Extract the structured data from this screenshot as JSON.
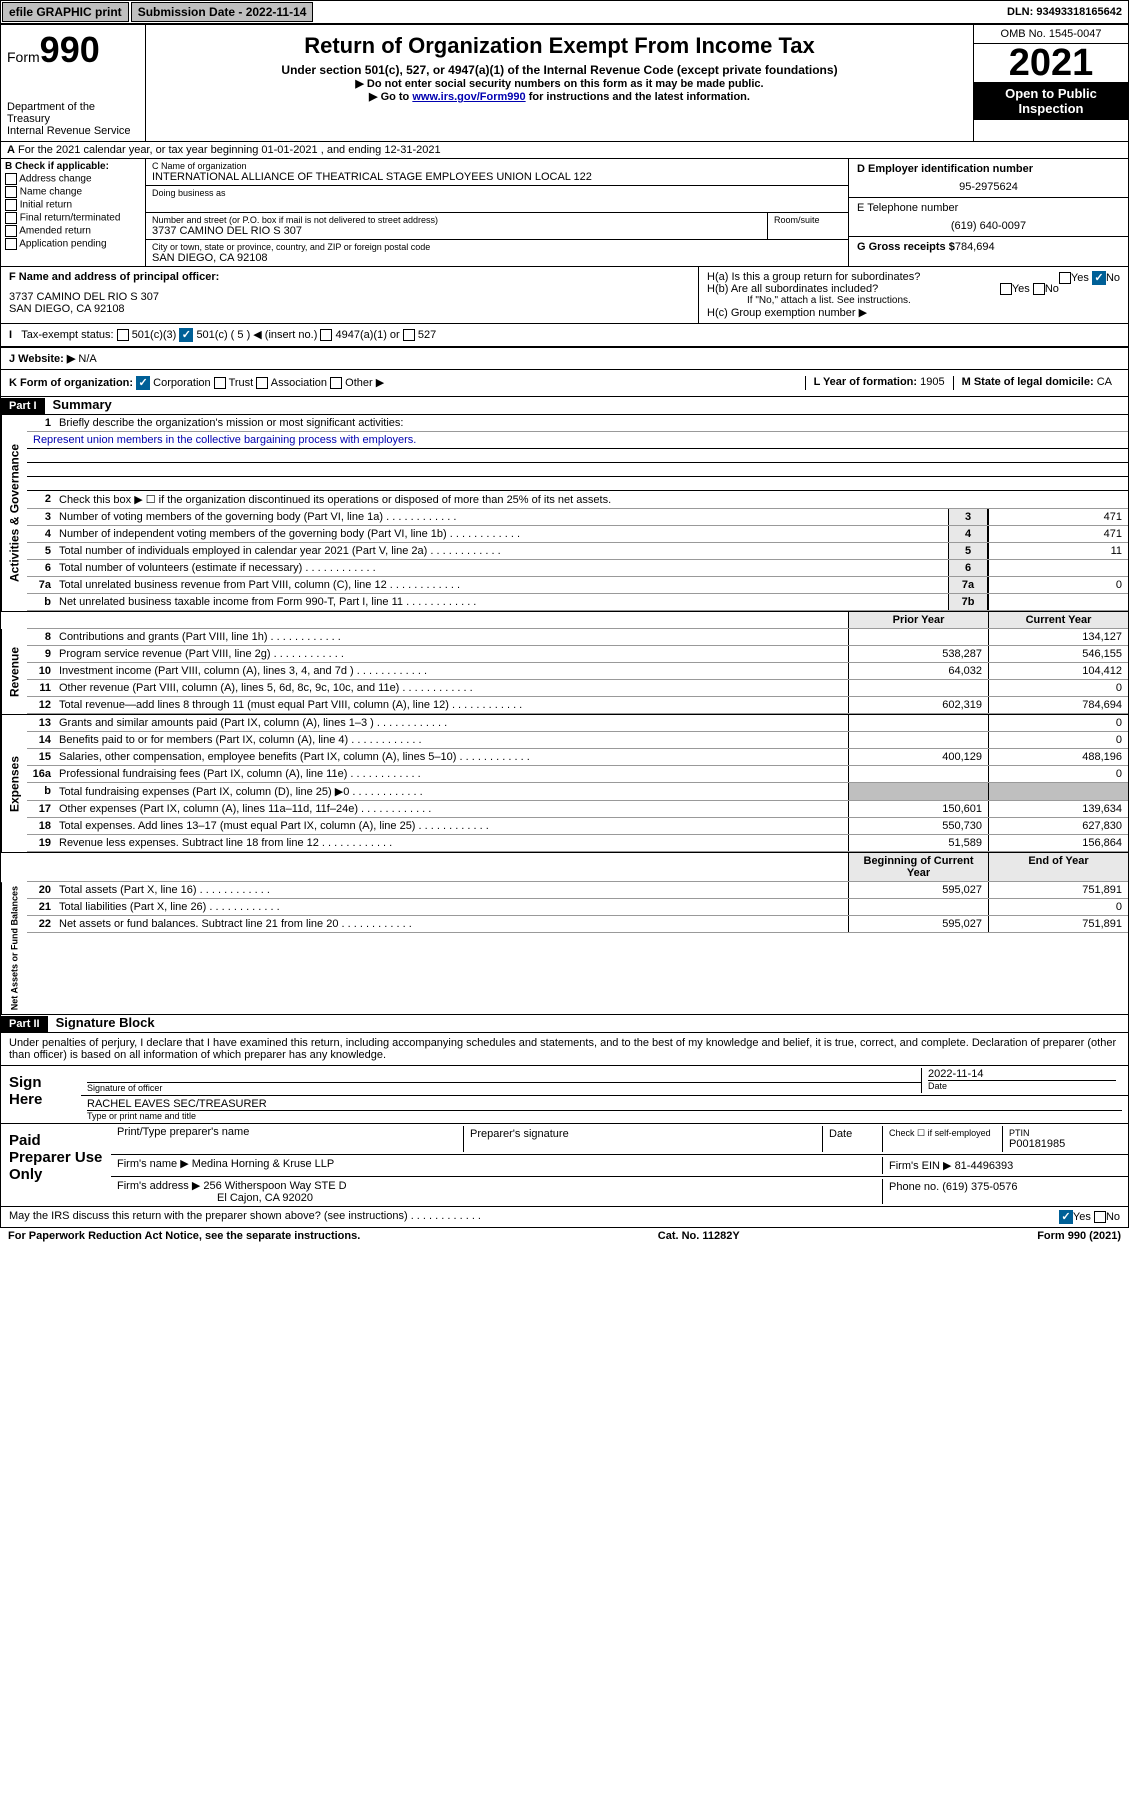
{
  "top": {
    "efile": "efile GRAPHIC print",
    "sub_date_label": "Submission Date - 2022-11-14",
    "dln": "DLN: 93493318165642"
  },
  "header": {
    "form_label": "Form",
    "form_num": "990",
    "dept": "Department of the Treasury",
    "irs": "Internal Revenue Service",
    "title": "Return of Organization Exempt From Income Tax",
    "subtitle": "Under section 501(c), 527, or 4947(a)(1) of the Internal Revenue Code (except private foundations)",
    "note1": "▶ Do not enter social security numbers on this form as it may be made public.",
    "note2": "▶ Go to www.irs.gov/Form990 for instructions and the latest information.",
    "omb": "OMB No. 1545-0047",
    "year": "2021",
    "open": "Open to Public Inspection"
  },
  "a": {
    "text": "For the 2021 calendar year, or tax year beginning 01-01-2021   , and ending 12-31-2021"
  },
  "b": {
    "hdr": "B Check if applicable:",
    "opts": [
      "Address change",
      "Name change",
      "Initial return",
      "Final return/terminated",
      "Amended return",
      "Application pending"
    ]
  },
  "c": {
    "name_label": "C Name of organization",
    "name": "INTERNATIONAL ALLIANCE OF THEATRICAL STAGE EMPLOYEES UNION LOCAL 122",
    "dba": "Doing business as",
    "addr_label": "Number and street (or P.O. box if mail is not delivered to street address)",
    "room": "Room/suite",
    "addr": "3737 CAMINO DEL RIO S 307",
    "city_label": "City or town, state or province, country, and ZIP or foreign postal code",
    "city": "SAN DIEGO, CA  92108"
  },
  "d": {
    "ein_label": "D Employer identification number",
    "ein": "95-2975624",
    "tel_label": "E Telephone number",
    "tel": "(619) 640-0097",
    "gross_label": "G Gross receipts $",
    "gross": "784,694"
  },
  "f": {
    "label": "F  Name and address of principal officer:",
    "addr1": "3737 CAMINO DEL RIO S 307",
    "addr2": "SAN DIEGO, CA  92108"
  },
  "h": {
    "a": "H(a)  Is this a group return for subordinates?",
    "b": "H(b)  Are all subordinates included?",
    "b_note": "If \"No,\" attach a list. See instructions.",
    "c": "H(c)  Group exemption number ▶"
  },
  "i": {
    "label": "Tax-exempt status:",
    "opts": [
      "501(c)(3)",
      "501(c) ( 5 ) ◀ (insert no.)",
      "4947(a)(1) or",
      "527"
    ]
  },
  "j": {
    "label": "J   Website: ▶",
    "val": "N/A"
  },
  "k": {
    "label": "K Form of organization:",
    "opts": [
      "Corporation",
      "Trust",
      "Association",
      "Other ▶"
    ]
  },
  "l": {
    "label": "L Year of formation:",
    "val": "1905"
  },
  "m": {
    "label": "M State of legal domicile:",
    "val": "CA"
  },
  "part1": {
    "hdr": "Part I",
    "title": "Summary",
    "q1": "Briefly describe the organization's mission or most significant activities:",
    "mission": "Represent union members in the collective bargaining process with employers.",
    "q2": "Check this box ▶ ☐  if the organization discontinued its operations or disposed of more than 25% of its net assets.",
    "lines_gov": [
      {
        "n": "3",
        "t": "Number of voting members of the governing body (Part VI, line 1a)",
        "b": "3",
        "v": "471"
      },
      {
        "n": "4",
        "t": "Number of independent voting members of the governing body (Part VI, line 1b)",
        "b": "4",
        "v": "471"
      },
      {
        "n": "5",
        "t": "Total number of individuals employed in calendar year 2021 (Part V, line 2a)",
        "b": "5",
        "v": "11"
      },
      {
        "n": "6",
        "t": "Total number of volunteers (estimate if necessary)",
        "b": "6",
        "v": ""
      },
      {
        "n": "7a",
        "t": "Total unrelated business revenue from Part VIII, column (C), line 12",
        "b": "7a",
        "v": "0"
      },
      {
        "n": "b",
        "t": "Net unrelated business taxable income from Form 990-T, Part I, line 11",
        "b": "7b",
        "v": ""
      }
    ],
    "col_prior": "Prior Year",
    "col_curr": "Current Year",
    "rev": [
      {
        "n": "8",
        "t": "Contributions and grants (Part VIII, line 1h)",
        "p": "",
        "c": "134,127"
      },
      {
        "n": "9",
        "t": "Program service revenue (Part VIII, line 2g)",
        "p": "538,287",
        "c": "546,155"
      },
      {
        "n": "10",
        "t": "Investment income (Part VIII, column (A), lines 3, 4, and 7d )",
        "p": "64,032",
        "c": "104,412"
      },
      {
        "n": "11",
        "t": "Other revenue (Part VIII, column (A), lines 5, 6d, 8c, 9c, 10c, and 11e)",
        "p": "",
        "c": "0"
      },
      {
        "n": "12",
        "t": "Total revenue—add lines 8 through 11 (must equal Part VIII, column (A), line 12)",
        "p": "602,319",
        "c": "784,694"
      }
    ],
    "exp": [
      {
        "n": "13",
        "t": "Grants and similar amounts paid (Part IX, column (A), lines 1–3 )",
        "p": "",
        "c": "0"
      },
      {
        "n": "14",
        "t": "Benefits paid to or for members (Part IX, column (A), line 4)",
        "p": "",
        "c": "0"
      },
      {
        "n": "15",
        "t": "Salaries, other compensation, employee benefits (Part IX, column (A), lines 5–10)",
        "p": "400,129",
        "c": "488,196"
      },
      {
        "n": "16a",
        "t": "Professional fundraising fees (Part IX, column (A), line 11e)",
        "p": "",
        "c": "0"
      },
      {
        "n": "b",
        "t": "Total fundraising expenses (Part IX, column (D), line 25) ▶0",
        "p": "—",
        "c": "—"
      },
      {
        "n": "17",
        "t": "Other expenses (Part IX, column (A), lines 11a–11d, 11f–24e)",
        "p": "150,601",
        "c": "139,634"
      },
      {
        "n": "18",
        "t": "Total expenses. Add lines 13–17 (must equal Part IX, column (A), line 25)",
        "p": "550,730",
        "c": "627,830"
      },
      {
        "n": "19",
        "t": "Revenue less expenses. Subtract line 18 from line 12",
        "p": "51,589",
        "c": "156,864"
      }
    ],
    "col_begin": "Beginning of Current Year",
    "col_end": "End of Year",
    "net": [
      {
        "n": "20",
        "t": "Total assets (Part X, line 16)",
        "p": "595,027",
        "c": "751,891"
      },
      {
        "n": "21",
        "t": "Total liabilities (Part X, line 26)",
        "p": "",
        "c": "0"
      },
      {
        "n": "22",
        "t": "Net assets or fund balances. Subtract line 21 from line 20",
        "p": "595,027",
        "c": "751,891"
      }
    ]
  },
  "part2": {
    "hdr": "Part II",
    "title": "Signature Block",
    "decl": "Under penalties of perjury, I declare that I have examined this return, including accompanying schedules and statements, and to the best of my knowledge and belief, it is true, correct, and complete. Declaration of preparer (other than officer) is based on all information of which preparer has any knowledge.",
    "sign_here": "Sign Here",
    "sig_officer": "Signature of officer",
    "sig_date": "2022-11-14",
    "date_label": "Date",
    "name_title": "RACHEL EAVES  SEC/TREASURER",
    "name_label": "Type or print name and title",
    "paid": "Paid Preparer Use Only",
    "prep_name": "Print/Type preparer's name",
    "prep_sig": "Preparer's signature",
    "prep_date": "Date",
    "check_self": "Check ☐ if self-employed",
    "ptin_label": "PTIN",
    "ptin": "P00181985",
    "firm_name_label": "Firm's name     ▶",
    "firm_name": "Medina Horning & Kruse LLP",
    "firm_ein_label": "Firm's EIN ▶",
    "firm_ein": "81-4496393",
    "firm_addr_label": "Firm's address ▶",
    "firm_addr": "256 Witherspoon Way STE D",
    "firm_addr2": "El Cajon, CA  92020",
    "phone_label": "Phone no.",
    "phone": "(619) 375-0576",
    "discuss": "May the IRS discuss this return with the preparer shown above? (see instructions)"
  },
  "footer": {
    "pra": "For Paperwork Reduction Act Notice, see the separate instructions.",
    "cat": "Cat. No. 11282Y",
    "form": "Form 990 (2021)"
  }
}
